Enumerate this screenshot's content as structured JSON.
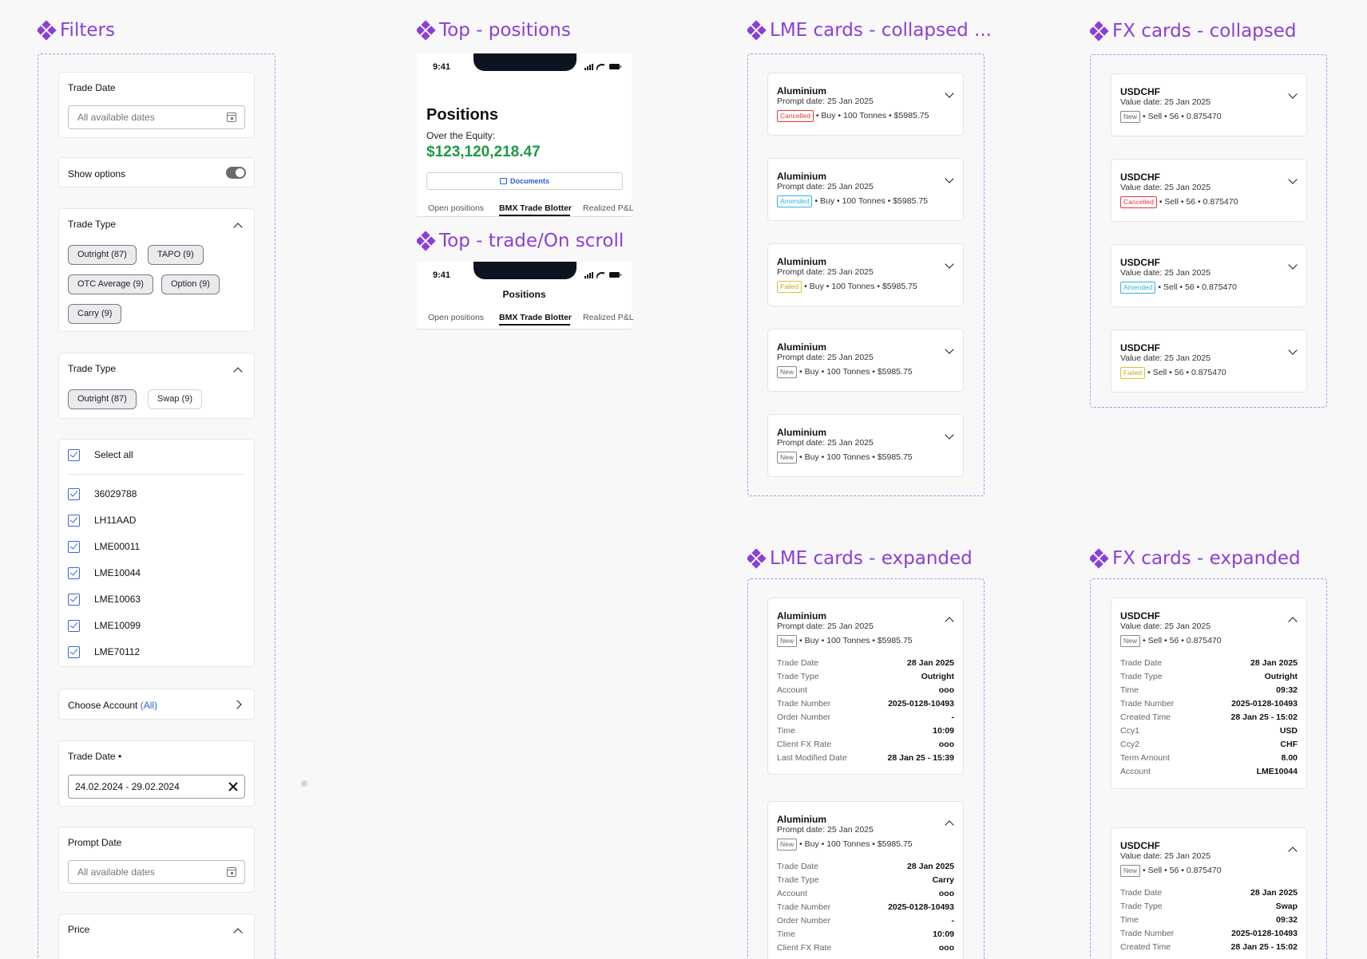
{
  "sections": {
    "filters": "Filters",
    "top_positions": "Top - positions",
    "top_trade": "Top - trade/On scroll",
    "lme_collapsed": "LME cards - collapsed ...",
    "fx_collapsed": "FX cards - collapsed",
    "lme_expanded": "LME cards - expanded",
    "fx_expanded": "FX cards - expanded"
  },
  "filters": {
    "trade_date": {
      "label": "Trade Date",
      "placeholder": "All available dates"
    },
    "show_options": {
      "label": "Show options",
      "on": true
    },
    "trade_type_1": {
      "label": "Trade Type",
      "chips": [
        "Outright (87)",
        "TAPO (9)",
        "OTC Average (9)",
        "Option (9)",
        "Carry (9)"
      ]
    },
    "trade_type_2": {
      "label": "Trade Type",
      "chips": [
        "Outright (87)",
        "Swap (9)"
      ]
    },
    "select_all": "Select all",
    "accounts": [
      "36029788",
      "LH11AAD",
      "LME00011",
      "LME10044",
      "LME10063",
      "LME10099",
      "LME70112"
    ],
    "choose_account": {
      "label": "Choose Account",
      "value": "(All)"
    },
    "trade_date_2": {
      "label": "Trade Date",
      "marker": "•",
      "value": "24.02.2024 - 29.02.2024"
    },
    "prompt_date": {
      "label": "Prompt Date",
      "placeholder": "All available dates"
    },
    "price": {
      "label": "Price"
    }
  },
  "positions_screen": {
    "time": "9:41",
    "title": "Positions",
    "equity_label": "Over the Equity:",
    "equity_value": "$123,120,218.47",
    "documents": "Documents",
    "tabs": [
      "Open positions",
      "BMX Trade Blotter",
      "Realized P&L"
    ],
    "active_tab": "BMX Trade Blotter"
  },
  "scroll_screen": {
    "time": "9:41",
    "title": "Positions",
    "tabs": [
      "Open positions",
      "BMX Trade Blotter",
      "Realized P&L"
    ]
  },
  "lme_collapsed": [
    {
      "title": "Aluminium",
      "sub": "Prompt date: 25 Jan 2025",
      "status": "Cancelled",
      "info": "• Buy • 100 Tonnes • $5985.75"
    },
    {
      "title": "Aluminium",
      "sub": "Prompt date: 25 Jan 2025",
      "status": "Amended",
      "info": "• Buy • 100 Tonnes • $5985.75"
    },
    {
      "title": "Aluminium",
      "sub": "Prompt date: 25 Jan 2025",
      "status": "Failed",
      "info": "• Buy • 100 Tonnes • $5985.75"
    },
    {
      "title": "Aluminium",
      "sub": "Prompt date: 25 Jan 2025",
      "status": "New",
      "info": "• Buy • 100 Tonnes • $5985.75"
    },
    {
      "title": "Aluminium",
      "sub": "Prompt date: 25 Jan 2025",
      "status": "New",
      "info": "• Buy • 100 Tonnes • $5985.75"
    }
  ],
  "fx_collapsed": [
    {
      "title": "USDCHF",
      "sub": "Value date: 25 Jan 2025",
      "status": "New",
      "info": "• Sell • 56 • 0.875470"
    },
    {
      "title": "USDCHF",
      "sub": "Value date: 25 Jan 2025",
      "status": "Cancelled",
      "info": "• Sell • 56 • 0.875470"
    },
    {
      "title": "USDCHF",
      "sub": "Value date: 25 Jan 2025",
      "status": "Amended",
      "info": "• Sell • 56 • 0.875470"
    },
    {
      "title": "USDCHF",
      "sub": "Value date: 25 Jan 2025",
      "status": "Failed",
      "info": "• Sell • 56 • 0.875470"
    }
  ],
  "lme_expanded": [
    {
      "title": "Aluminium",
      "sub": "Prompt date: 25 Jan 2025",
      "status": "New",
      "info": "• Buy • 100 Tonnes • $5985.75",
      "details": [
        [
          "Trade Date",
          "28 Jan 2025"
        ],
        [
          "Trade Type",
          "Outright"
        ],
        [
          "Account",
          "ooo"
        ],
        [
          "Trade Number",
          "2025-0128-10493"
        ],
        [
          "Order Number",
          "-"
        ],
        [
          "Time",
          "10:09"
        ],
        [
          "Client FX Rate",
          "ooo"
        ],
        [
          "Last Modified Date",
          "28 Jan 25 - 15:39"
        ]
      ]
    },
    {
      "title": "Aluminium",
      "sub": "Prompt date: 25 Jan 2025",
      "status": "New",
      "info": "• Buy • 100 Tonnes • $5985.75",
      "details": [
        [
          "Trade Date",
          "28 Jan 2025"
        ],
        [
          "Trade Type",
          "Carry"
        ],
        [
          "Account",
          "ooo"
        ],
        [
          "Trade Number",
          "2025-0128-10493"
        ],
        [
          "Order Number",
          "-"
        ],
        [
          "Time",
          "10:09"
        ],
        [
          "Client FX Rate",
          "ooo"
        ]
      ]
    }
  ],
  "fx_expanded": [
    {
      "title": "USDCHF",
      "sub": "Value date: 25 Jan 2025",
      "status": "New",
      "info": "• Sell • 56 • 0.875470",
      "details": [
        [
          "Trade Date",
          "28 Jan 2025"
        ],
        [
          "Trade Type",
          "Outright"
        ],
        [
          "Time",
          "09:32"
        ],
        [
          "Trade Number",
          "2025-0128-10493"
        ],
        [
          "Created Time",
          "28 Jan 25 - 15:02"
        ],
        [
          "Ccy1",
          "USD"
        ],
        [
          "Ccy2",
          "CHF"
        ],
        [
          "Term Amount",
          "8.00"
        ],
        [
          "Account",
          "LME10044"
        ]
      ]
    },
    {
      "title": "USDCHF",
      "sub": "Value date: 25 Jan 2025",
      "status": "New",
      "info": "• Sell • 56 • 0.875470",
      "details": [
        [
          "Trade Date",
          "28 Jan 2025"
        ],
        [
          "Trade Type",
          "Swap"
        ],
        [
          "Time",
          "09:32"
        ],
        [
          "Trade Number",
          "2025-0128-10493"
        ],
        [
          "Created Time",
          "28 Jan 25 - 15:02"
        ]
      ]
    }
  ]
}
